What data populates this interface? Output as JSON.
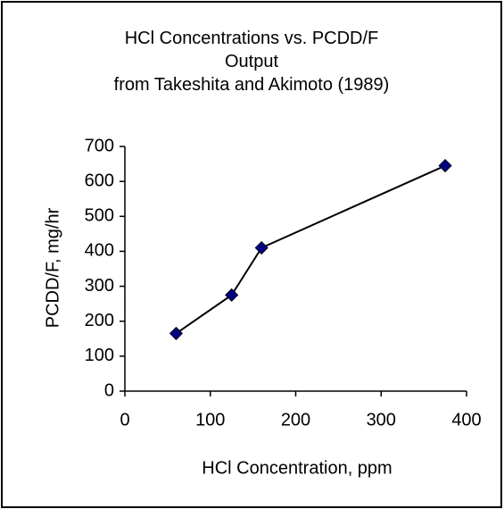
{
  "chart_data": {
    "type": "line",
    "title": "HCl Concentrations vs. PCDD/F Output",
    "subtitle": "from Takeshita and Akimoto (1989)",
    "x_label": "HCl Concentration, ppm",
    "y_label": "PCDD/F, mg/hr",
    "x": [
      60,
      125,
      160,
      375
    ],
    "series": [
      {
        "name": "PCDD/F",
        "color": "#000080",
        "values": [
          165,
          275,
          410,
          645
        ]
      }
    ],
    "xlim": [
      0,
      400
    ],
    "xticks": [
      0,
      100,
      200,
      300,
      400
    ],
    "ylim": [
      0,
      700
    ],
    "yticks": [
      0,
      100,
      200,
      300,
      400,
      500,
      600,
      700
    ],
    "grid": false
  }
}
